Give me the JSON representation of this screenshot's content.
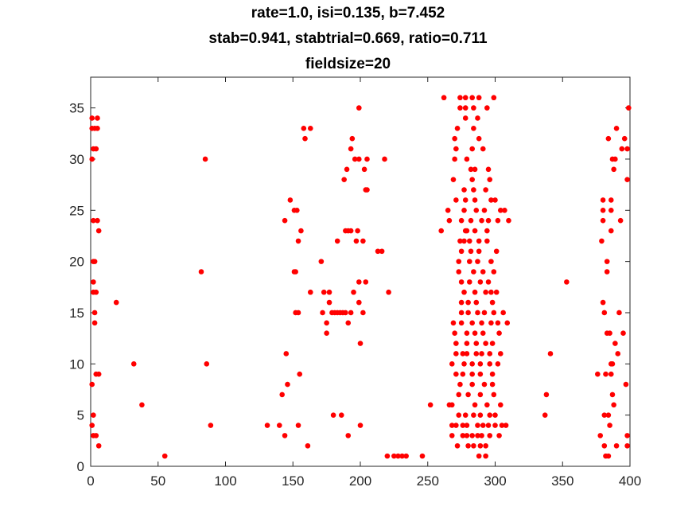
{
  "chart_data": {
    "type": "scatter",
    "title_lines": [
      "rate=1.0, isi=0.135, b=7.452",
      "stab=0.941, stabtrial=0.669, ratio=0.711",
      "fieldsize=20"
    ],
    "xlabel": "",
    "ylabel": "",
    "xlim": [
      0,
      400
    ],
    "ylim": [
      0,
      38
    ],
    "xticks": [
      0,
      50,
      100,
      150,
      200,
      250,
      300,
      350,
      400
    ],
    "yticks": [
      0,
      5,
      10,
      15,
      20,
      25,
      30,
      35
    ],
    "grid": false,
    "marker_color": "#ff0000",
    "series": [
      {
        "points": [
          [
            1,
            34
          ],
          [
            3,
            33
          ],
          [
            5,
            34
          ],
          [
            1,
            33
          ],
          [
            5,
            33
          ],
          [
            2,
            31
          ],
          [
            4,
            31
          ],
          [
            1,
            30
          ],
          [
            2,
            24
          ],
          [
            5,
            24
          ],
          [
            6,
            23
          ],
          [
            2,
            20
          ],
          [
            3,
            20
          ],
          [
            2,
            18
          ],
          [
            2,
            17
          ],
          [
            4,
            17
          ],
          [
            3,
            15
          ],
          [
            3,
            14
          ],
          [
            4,
            9
          ],
          [
            6,
            9
          ],
          [
            1,
            8
          ],
          [
            2,
            5
          ],
          [
            1,
            4
          ],
          [
            2,
            3
          ],
          [
            4,
            3
          ],
          [
            6,
            2
          ],
          [
            19,
            16
          ],
          [
            32,
            10
          ],
          [
            38,
            6
          ],
          [
            55,
            1
          ],
          [
            82,
            19
          ],
          [
            85,
            30
          ],
          [
            86,
            10
          ],
          [
            89,
            4
          ],
          [
            131,
            4
          ],
          [
            140,
            4
          ],
          [
            142,
            7
          ],
          [
            144,
            24
          ],
          [
            144,
            3
          ],
          [
            145,
            11
          ],
          [
            146,
            8
          ],
          [
            148,
            26
          ],
          [
            151,
            25
          ],
          [
            153,
            25
          ],
          [
            151,
            19
          ],
          [
            152,
            19
          ],
          [
            152,
            15
          ],
          [
            154,
            15
          ],
          [
            154,
            22
          ],
          [
            154,
            4
          ],
          [
            155,
            9
          ],
          [
            156,
            23
          ],
          [
            158,
            33
          ],
          [
            159,
            32
          ],
          [
            161,
            2
          ],
          [
            163,
            33
          ],
          [
            163,
            17
          ],
          [
            171,
            20
          ],
          [
            172,
            15
          ],
          [
            173,
            17
          ],
          [
            175,
            14
          ],
          [
            175,
            13
          ],
          [
            177,
            17
          ],
          [
            177,
            16
          ],
          [
            179,
            15
          ],
          [
            181,
            15
          ],
          [
            180,
            5
          ],
          [
            183,
            22
          ],
          [
            183,
            15
          ],
          [
            185,
            15
          ],
          [
            186,
            5
          ],
          [
            187,
            15
          ],
          [
            188,
            28
          ],
          [
            189,
            23
          ],
          [
            189,
            15
          ],
          [
            190,
            29
          ],
          [
            191,
            23
          ],
          [
            191,
            14
          ],
          [
            191,
            3
          ],
          [
            193,
            31
          ],
          [
            193,
            23
          ],
          [
            193,
            15
          ],
          [
            194,
            32
          ],
          [
            195,
            17
          ],
          [
            196,
            30
          ],
          [
            197,
            22
          ],
          [
            198,
            23
          ],
          [
            199,
            18
          ],
          [
            199,
            35
          ],
          [
            199,
            16
          ],
          [
            199,
            30
          ],
          [
            200,
            12
          ],
          [
            200,
            4
          ],
          [
            202,
            22
          ],
          [
            202,
            15
          ],
          [
            203,
            29
          ],
          [
            204,
            18
          ],
          [
            204,
            27
          ],
          [
            205,
            27
          ],
          [
            205,
            30
          ],
          [
            213,
            21
          ],
          [
            216,
            21
          ],
          [
            218,
            30
          ],
          [
            220,
            1
          ],
          [
            221,
            17
          ],
          [
            225,
            1
          ],
          [
            228,
            1
          ],
          [
            231,
            1
          ],
          [
            234,
            1
          ],
          [
            246,
            1
          ],
          [
            252,
            6
          ],
          [
            260,
            23
          ],
          [
            262,
            36
          ],
          [
            265,
            25
          ],
          [
            266,
            24
          ],
          [
            266,
            6
          ],
          [
            268,
            3
          ],
          [
            268,
            4
          ],
          [
            268,
            6
          ],
          [
            268,
            10
          ],
          [
            269,
            14
          ],
          [
            269,
            28
          ],
          [
            270,
            13
          ],
          [
            270,
            32
          ],
          [
            270,
            30
          ],
          [
            271,
            31
          ],
          [
            271,
            26
          ],
          [
            271,
            12
          ],
          [
            271,
            11
          ],
          [
            271,
            9
          ],
          [
            271,
            4
          ],
          [
            272,
            33
          ],
          [
            272,
            2
          ],
          [
            273,
            5
          ],
          [
            273,
            7
          ],
          [
            273,
            19
          ],
          [
            273,
            20
          ],
          [
            274,
            8
          ],
          [
            274,
            36
          ],
          [
            274,
            35
          ],
          [
            274,
            22
          ],
          [
            275,
            21
          ],
          [
            275,
            24
          ],
          [
            275,
            16
          ],
          [
            275,
            18
          ],
          [
            275,
            15
          ],
          [
            275,
            14
          ],
          [
            276,
            3
          ],
          [
            276,
            4
          ],
          [
            276,
            11
          ],
          [
            276,
            9
          ],
          [
            277,
            17
          ],
          [
            277,
            10
          ],
          [
            277,
            22
          ],
          [
            277,
            25
          ],
          [
            277,
            27
          ],
          [
            278,
            36
          ],
          [
            278,
            35
          ],
          [
            278,
            5
          ],
          [
            278,
            34
          ],
          [
            278,
            26
          ],
          [
            278,
            23
          ],
          [
            279,
            23
          ],
          [
            279,
            3
          ],
          [
            279,
            4
          ],
          [
            279,
            13
          ],
          [
            279,
            30
          ],
          [
            279,
            12
          ],
          [
            279,
            11
          ],
          [
            280,
            2
          ],
          [
            280,
            7
          ],
          [
            280,
            16
          ],
          [
            280,
            15
          ],
          [
            281,
            22
          ],
          [
            281,
            18
          ],
          [
            281,
            20
          ],
          [
            282,
            29
          ],
          [
            282,
            21
          ],
          [
            282,
            24
          ],
          [
            283,
            36
          ],
          [
            283,
            3
          ],
          [
            283,
            9
          ],
          [
            283,
            8
          ],
          [
            283,
            14
          ],
          [
            283,
            31
          ],
          [
            283,
            28
          ],
          [
            283,
            10
          ],
          [
            284,
            35
          ],
          [
            284,
            27
          ],
          [
            284,
            19
          ],
          [
            284,
            33
          ],
          [
            284,
            5
          ],
          [
            284,
            2
          ],
          [
            285,
            6
          ],
          [
            285,
            26
          ],
          [
            285,
            23
          ],
          [
            285,
            13
          ],
          [
            285,
            17
          ],
          [
            285,
            29
          ],
          [
            286,
            12
          ],
          [
            286,
            11
          ],
          [
            286,
            25
          ],
          [
            286,
            16
          ],
          [
            287,
            34
          ],
          [
            287,
            3
          ],
          [
            287,
            4
          ],
          [
            287,
            15
          ],
          [
            287,
            20
          ],
          [
            288,
            36
          ],
          [
            288,
            22
          ],
          [
            288,
            21
          ],
          [
            288,
            32
          ],
          [
            288,
            1
          ],
          [
            289,
            2
          ],
          [
            289,
            9
          ],
          [
            289,
            10
          ],
          [
            289,
            18
          ],
          [
            289,
            7
          ],
          [
            289,
            5
          ],
          [
            290,
            24
          ],
          [
            290,
            14
          ],
          [
            290,
            11
          ],
          [
            290,
            3
          ],
          [
            291,
            31
          ],
          [
            291,
            19
          ],
          [
            291,
            13
          ],
          [
            291,
            4
          ],
          [
            292,
            25
          ],
          [
            292,
            8
          ],
          [
            292,
            15
          ],
          [
            293,
            17
          ],
          [
            293,
            12
          ],
          [
            293,
            1
          ],
          [
            293,
            27
          ],
          [
            293,
            2
          ],
          [
            294,
            35
          ],
          [
            294,
            23
          ],
          [
            294,
            6
          ],
          [
            294,
            22
          ],
          [
            295,
            29
          ],
          [
            295,
            24
          ],
          [
            295,
            18
          ],
          [
            295,
            4
          ],
          [
            296,
            28
          ],
          [
            296,
            11
          ],
          [
            296,
            10
          ],
          [
            296,
            3
          ],
          [
            296,
            5
          ],
          [
            297,
            26
          ],
          [
            297,
            20
          ],
          [
            297,
            14
          ],
          [
            297,
            17
          ],
          [
            298,
            16
          ],
          [
            298,
            12
          ],
          [
            298,
            9
          ],
          [
            298,
            8
          ],
          [
            299,
            36
          ],
          [
            299,
            19
          ],
          [
            299,
            15
          ],
          [
            299,
            7
          ],
          [
            300,
            26
          ],
          [
            300,
            5
          ],
          [
            300,
            4
          ],
          [
            301,
            21
          ],
          [
            301,
            17
          ],
          [
            302,
            24
          ],
          [
            302,
            14
          ],
          [
            302,
            10
          ],
          [
            303,
            13
          ],
          [
            303,
            3
          ],
          [
            304,
            11
          ],
          [
            304,
            6
          ],
          [
            304,
            25
          ],
          [
            305,
            4
          ],
          [
            306,
            15
          ],
          [
            307,
            25
          ],
          [
            308,
            4
          ],
          [
            309,
            14
          ],
          [
            310,
            24
          ],
          [
            337,
            5
          ],
          [
            338,
            7
          ],
          [
            341,
            11
          ],
          [
            353,
            18
          ],
          [
            376,
            9
          ],
          [
            378,
            3
          ],
          [
            379,
            22
          ],
          [
            380,
            25
          ],
          [
            380,
            26
          ],
          [
            380,
            16
          ],
          [
            380,
            24
          ],
          [
            381,
            5
          ],
          [
            381,
            2
          ],
          [
            381,
            15
          ],
          [
            382,
            1
          ],
          [
            382,
            9
          ],
          [
            383,
            20
          ],
          [
            383,
            19
          ],
          [
            383,
            13
          ],
          [
            384,
            32
          ],
          [
            384,
            5
          ],
          [
            384,
            1
          ],
          [
            385,
            13
          ],
          [
            385,
            4
          ],
          [
            386,
            10
          ],
          [
            386,
            9
          ],
          [
            386,
            25
          ],
          [
            386,
            26
          ],
          [
            386,
            23
          ],
          [
            387,
            30
          ],
          [
            387,
            7
          ],
          [
            387,
            10
          ],
          [
            388,
            29
          ],
          [
            388,
            6
          ],
          [
            389,
            30
          ],
          [
            389,
            12
          ],
          [
            390,
            33
          ],
          [
            390,
            2
          ],
          [
            391,
            11
          ],
          [
            392,
            15
          ],
          [
            393,
            24
          ],
          [
            394,
            31
          ],
          [
            395,
            13
          ],
          [
            396,
            32
          ],
          [
            397,
            8
          ],
          [
            398,
            31
          ],
          [
            398,
            3
          ],
          [
            398,
            28
          ],
          [
            399,
            35
          ],
          [
            398,
            2
          ]
        ]
      }
    ]
  }
}
